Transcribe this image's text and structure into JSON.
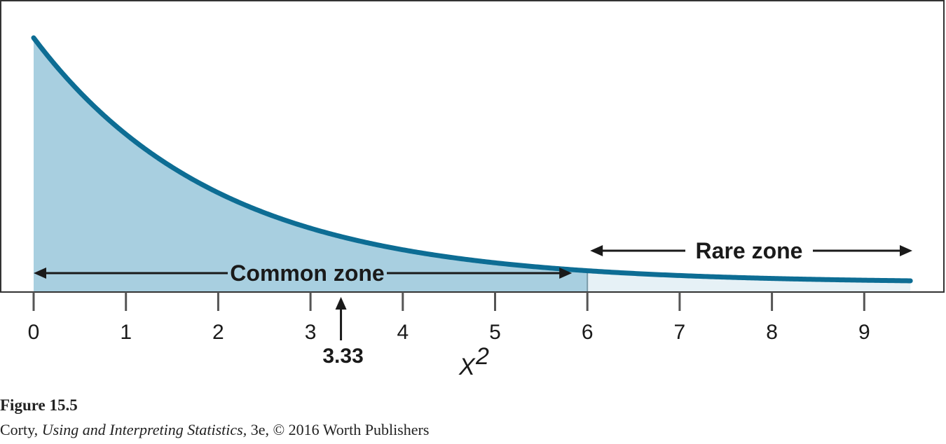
{
  "chart_data": {
    "type": "area",
    "xlabel": "X",
    "xlabel_sup": "2",
    "xlim": [
      0,
      9.5
    ],
    "x_ticks": [
      0,
      1,
      2,
      3,
      4,
      5,
      6,
      7,
      8,
      9
    ],
    "x_tick_labels": [
      "0",
      "1",
      "2",
      "3",
      "4",
      "5",
      "6",
      "7",
      "8",
      "9"
    ],
    "curve": {
      "distribution": "chi-square",
      "df": 2,
      "x": [
        0,
        0.5,
        1,
        1.5,
        2,
        2.5,
        3,
        3.5,
        4,
        4.5,
        5,
        5.5,
        6,
        6.5,
        7,
        7.5,
        8,
        8.5,
        9,
        9.5
      ],
      "y": [
        0.5,
        0.389,
        0.303,
        0.236,
        0.184,
        0.143,
        0.112,
        0.087,
        0.068,
        0.053,
        0.041,
        0.032,
        0.025,
        0.019,
        0.015,
        0.012,
        0.009,
        0.007,
        0.006,
        0.004
      ]
    },
    "critical_value": 6,
    "zones": [
      {
        "label": "Common zone",
        "from": 0,
        "to": 6,
        "color": "#a8cfe0"
      },
      {
        "label": "Rare zone",
        "from": 6,
        "to": 9.5,
        "color": "#e6f1f6"
      }
    ],
    "marker": {
      "value": 3.33,
      "label": "3.33"
    },
    "curve_color": "#0d6d94",
    "grid": false,
    "legend": "none"
  },
  "caption": {
    "figure_number": "Figure 15.5",
    "author": "Corty, ",
    "book_title": "Using and Interpreting Statistics,",
    "rest": " 3e, © 2016 Worth Publishers"
  }
}
